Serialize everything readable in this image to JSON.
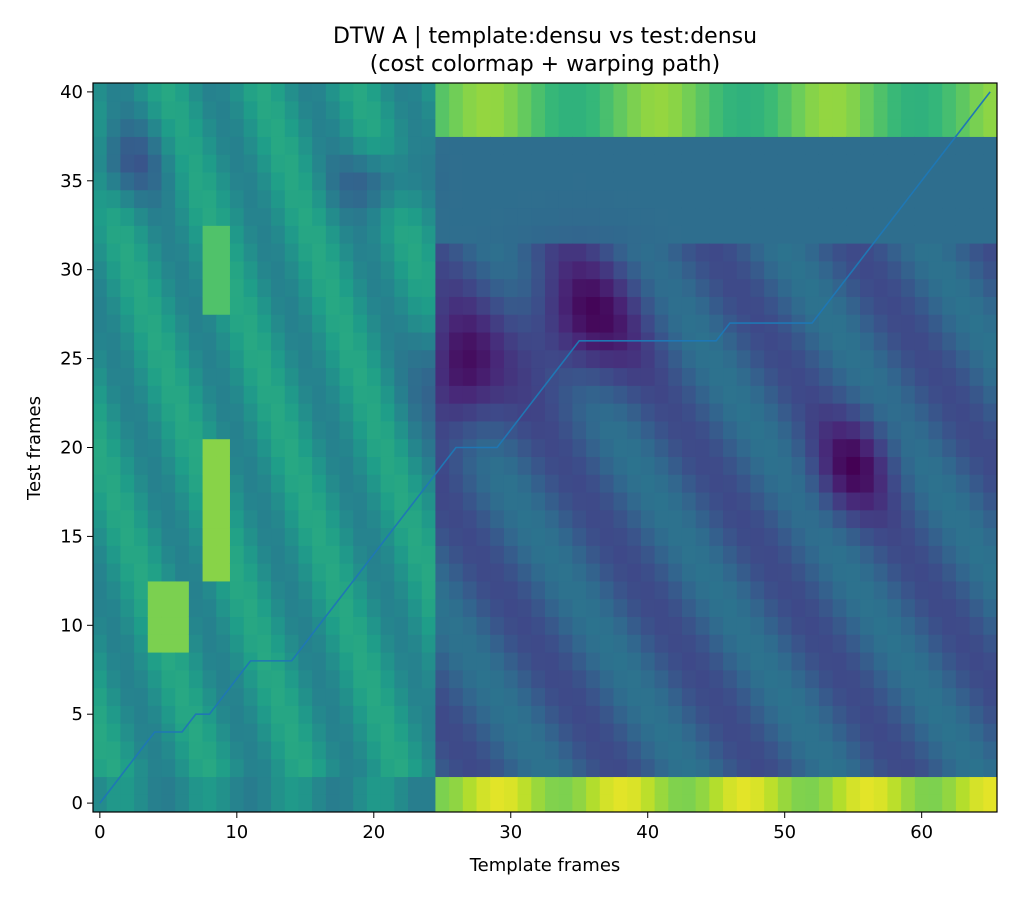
{
  "chart_data": {
    "type": "heatmap",
    "title": "DTW A | template:densu vs test:densu",
    "subtitle": "(cost colormap + warping path)",
    "xlabel": "Template frames",
    "ylabel": "Test frames",
    "colormap": "viridis",
    "x_range": [
      -0.5,
      65.5
    ],
    "y_range": [
      -0.5,
      40.5
    ],
    "x_ticks": [
      0,
      10,
      20,
      30,
      40,
      50,
      60
    ],
    "y_ticks": [
      0,
      5,
      10,
      15,
      20,
      25,
      30,
      35,
      40
    ],
    "grid": false,
    "legend": "none",
    "path_color": "#1f77b4",
    "warping_path": [
      [
        0,
        0
      ],
      [
        1,
        1
      ],
      [
        2,
        2
      ],
      [
        3,
        3
      ],
      [
        4,
        4
      ],
      [
        5,
        4
      ],
      [
        6,
        4
      ],
      [
        7,
        5
      ],
      [
        8,
        5
      ],
      [
        9,
        6
      ],
      [
        10,
        7
      ],
      [
        11,
        8
      ],
      [
        12,
        8
      ],
      [
        13,
        8
      ],
      [
        14,
        8
      ],
      [
        15,
        9
      ],
      [
        16,
        10
      ],
      [
        17,
        11
      ],
      [
        18,
        12
      ],
      [
        19,
        13
      ],
      [
        20,
        14
      ],
      [
        21,
        15
      ],
      [
        22,
        16
      ],
      [
        23,
        17
      ],
      [
        24,
        18
      ],
      [
        25,
        19
      ],
      [
        26,
        20
      ],
      [
        27,
        20
      ],
      [
        28,
        20
      ],
      [
        29,
        20
      ],
      [
        30,
        21
      ],
      [
        31,
        22
      ],
      [
        32,
        23
      ],
      [
        33,
        24
      ],
      [
        34,
        25
      ],
      [
        35,
        26
      ],
      [
        36,
        26
      ],
      [
        37,
        26
      ],
      [
        38,
        26
      ],
      [
        39,
        26
      ],
      [
        40,
        26
      ],
      [
        41,
        26
      ],
      [
        42,
        26
      ],
      [
        43,
        26
      ],
      [
        44,
        26
      ],
      [
        45,
        26
      ],
      [
        46,
        27
      ],
      [
        47,
        27
      ],
      [
        48,
        27
      ],
      [
        49,
        27
      ],
      [
        50,
        27
      ],
      [
        51,
        27
      ],
      [
        52,
        27
      ],
      [
        53,
        28
      ],
      [
        54,
        29
      ],
      [
        55,
        30
      ],
      [
        56,
        31
      ],
      [
        57,
        32
      ],
      [
        58,
        33
      ],
      [
        59,
        34
      ],
      [
        60,
        35
      ],
      [
        61,
        36
      ],
      [
        62,
        37
      ],
      [
        63,
        38
      ],
      [
        64,
        39
      ],
      [
        65,
        40
      ]
    ]
  }
}
